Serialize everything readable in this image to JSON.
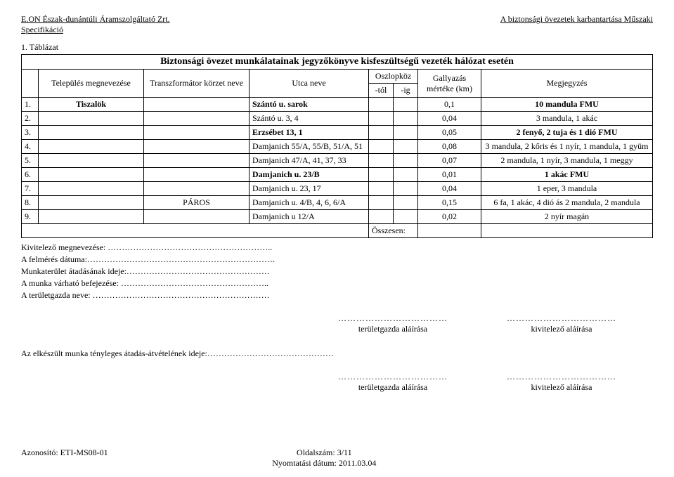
{
  "header": {
    "left": "E.ON Észak-dunántúli Áramszolgáltató Zrt.",
    "right": "A biztonsági övezetek karbantartása Műszaki",
    "spec": "Specifikáció"
  },
  "table_label": "1. Táblázat",
  "main_title": "Biztonsági övezet munkálatainak jegyzőkönyve kisfeszültségű vezeték hálózat esetén",
  "columns": {
    "telepules": "Település megnevezése",
    "transzf": "Transzformátor körzet neve",
    "utca": "Utca neve",
    "oszlopkoz": "Oszlopköz",
    "tol": "-tól",
    "ig": "-ig",
    "gallyazas": "Gallyazás mértéke (km)",
    "megjegyzes": "Megjegyzés"
  },
  "rows": [
    {
      "n": "1.",
      "telep": "Tiszalök",
      "transz": "",
      "utca": "Szántó u. sarok",
      "gally": "0,1",
      "megj": "10 mandula FMU",
      "bold": true
    },
    {
      "n": "2.",
      "telep": "",
      "transz": "",
      "utca": "Szántó u. 3, 4",
      "gally": "0,04",
      "megj": "3 mandula, 1 akác",
      "bold": false
    },
    {
      "n": "3.",
      "telep": "",
      "transz": "",
      "utca": "Erzsébet 13, 1",
      "gally": "0,05",
      "megj": "2 fenyő, 2 tuja és 1 dió FMU",
      "bold": true
    },
    {
      "n": "4.",
      "telep": "",
      "transz": "",
      "utca": "Damjanich 55/A, 55/B, 51/A, 51",
      "gally": "0,08",
      "megj": "3 mandula, 2 kőris és 1 nyír, 1 mandula, 1 gyüm",
      "bold": false
    },
    {
      "n": "5.",
      "telep": "",
      "transz": "",
      "utca": "Damjanich 47/A, 41, 37, 33",
      "gally": "0,07",
      "megj": "2 mandula, 1 nyír, 3 mandula, 1 meggy",
      "bold": false
    },
    {
      "n": "6.",
      "telep": "",
      "transz": "",
      "utca": "Damjanich u. 23/B",
      "gally": "0,01",
      "megj": "1 akác FMU",
      "bold": true
    },
    {
      "n": "7.",
      "telep": "",
      "transz": "",
      "utca": "Damjanich u. 23, 17",
      "gally": "0,04",
      "megj": "1 eper, 3 mandula",
      "bold": false
    },
    {
      "n": "8.",
      "telep": "",
      "transz": "PÁROS",
      "utca": "Damjanich u. 4/B, 4, 6, 6/A",
      "gally": "0,15",
      "megj": "6 fa, 1 akác, 4 dió ás 2 mandula, 2 mandula",
      "bold": false
    },
    {
      "n": "9.",
      "telep": "",
      "transz": "",
      "utca": "Damjanich u 12/A",
      "gally": "0,02",
      "megj": "2 nyír magán",
      "bold": false
    }
  ],
  "osszesen": "Összesen:",
  "form": {
    "kivitelezo": "Kivitelező megnevezése: …………………………………………………..",
    "felmeres": "A felmérés dátuma:………………………………………………………….",
    "munkaterulet": "Munkaterület átadásának ideje:……………………………………………",
    "varhato": "A munka várható befejezése: ……………………………………………..",
    "teruletgazda_neve": "A területgazda neve: ………………………………………………………"
  },
  "sign": {
    "dots": "………………………………",
    "teruletgazda": "területgazda aláírása",
    "kivitelezo": "kivitelező aláírása"
  },
  "handover": "Az elkészült munka tényleges átadás-átvételének ideje:………………………………………",
  "footer": {
    "left": "Azonosító: ETI-MS08-01",
    "center_top": "Oldalszám: 3/11",
    "center_bottom": "Nyomtatási dátum: 2011.03.04"
  }
}
